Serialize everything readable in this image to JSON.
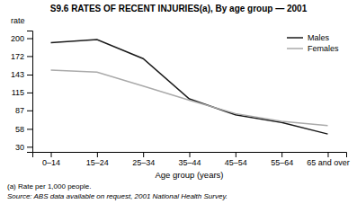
{
  "chart_data": {
    "type": "line",
    "title": "S9.6   RATES OF RECENT INJURIES(a), By age group — 2001",
    "x_label": "Age group (years)",
    "y_label": "rate",
    "categories": [
      "0–14",
      "15–24",
      "25–34",
      "35–44",
      "45–54",
      "55–64",
      "65 and over"
    ],
    "series": [
      {
        "name": "Males",
        "color": "#1a1a1a",
        "values": [
          193,
          198,
          168,
          105,
          80,
          68,
          50
        ]
      },
      {
        "name": "Females",
        "color": "#aaaaaa",
        "values": [
          150,
          147,
          125,
          103,
          82,
          70,
          63
        ]
      }
    ],
    "ylim": [
      22,
      212
    ],
    "yticks": [
      30,
      58,
      87,
      115,
      143,
      172,
      200
    ],
    "grid": false,
    "legend": "upper right",
    "annotations": [
      "(a)  Rate per 1,000 people.",
      "Source: ABS data available on request, 2001 National Health Survey."
    ]
  }
}
